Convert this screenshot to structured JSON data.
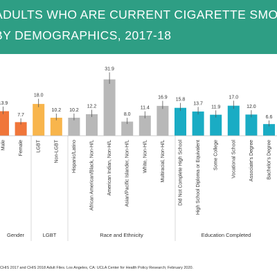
{
  "title": {
    "line1": "ADULTS WHO ARE CURRENT CIGARETTE SMO",
    "line2": "BY DEMOGRAPHICS, 2017-18"
  },
  "source": "CHIS 2017 and CHIS 2018 Adult Files. Los Angeles, CA: UCLA Center for Health Policy Research; February 2020.",
  "colors": {
    "banner": "#2e9e84",
    "gender": "#f0763a",
    "lgbt": "#f8b54c",
    "race": "#b8b8b8",
    "education": "#1aacc4",
    "text": "#333333"
  },
  "chart_data": {
    "type": "bar",
    "title": "",
    "groups": [
      {
        "name": "Gender",
        "color": "#f0763a",
        "bars": [
          {
            "label": "Male",
            "value": 13.9
          },
          {
            "label": "Female",
            "value": 7.7
          }
        ]
      },
      {
        "name": "LGBT",
        "color": "#f8b54c",
        "bars": [
          {
            "label": "LGBT",
            "value": 18.0
          },
          {
            "label": "Non-LGBT",
            "value": 10.2
          }
        ]
      },
      {
        "name": "Race and Ethnicity",
        "color": "#b8b8b8",
        "bars": [
          {
            "label": "Hispanic/Latino",
            "value": 10.2
          },
          {
            "label": "African American/Black, Non-H/L",
            "value": 12.2
          },
          {
            "label": "American Indian, Non-H/L",
            "value": 31.9
          },
          {
            "label": "Asian/Pacific Islander, Non-H/L",
            "value": 8.0
          },
          {
            "label": "White, Non-H/L",
            "value": 11.4
          },
          {
            "label": "Multiracial, Non-H/L",
            "value": 16.9
          }
        ]
      },
      {
        "name": "Education Completed",
        "color": "#1aacc4",
        "bars": [
          {
            "label": "Did Not Complete High School",
            "value": 15.8
          },
          {
            "label": "High School Diploma or Equivalent",
            "value": 13.7
          },
          {
            "label": "Some College",
            "value": 11.9
          },
          {
            "label": "Vocational School",
            "value": 17.0
          },
          {
            "label": "Associate's Degree",
            "value": 12.0
          },
          {
            "label": "Bachelor's Degree",
            "value": 6.6
          }
        ]
      }
    ],
    "ylim": [
      0,
      35
    ],
    "error_bars": true,
    "grid": false
  }
}
